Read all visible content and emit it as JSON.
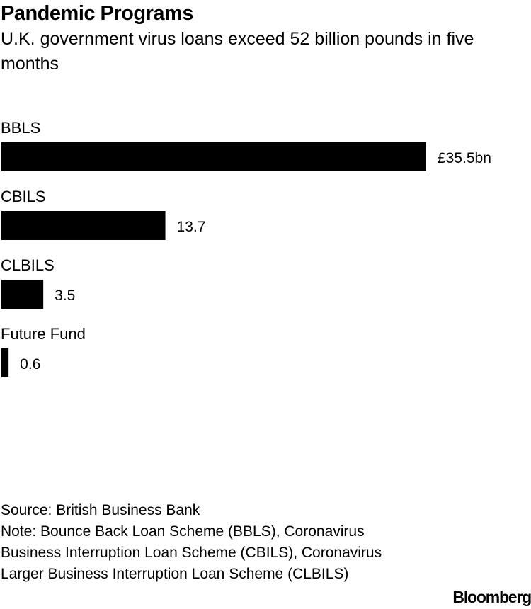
{
  "title": "Pandemic Programs",
  "subtitle": "U.K. government virus loans exceed 52 billion pounds in five months",
  "chart_data": {
    "type": "bar",
    "orientation": "horizontal",
    "title": "",
    "categories": [
      "BBLS",
      "CBILS",
      "CLBILS",
      "Future Fund"
    ],
    "values": [
      35.5,
      13.7,
      3.5,
      0.6
    ],
    "value_labels": [
      "£35.5bn",
      "13.7",
      "3.5",
      "0.6"
    ],
    "xlabel": "",
    "ylabel": "",
    "unit": "£bn",
    "xlim": [
      0,
      35.5
    ],
    "grid": false,
    "bar_color": "#000000"
  },
  "footer": {
    "source": "Source: British Business Bank",
    "note": "Note: Bounce Back Loan Scheme (BBLS), Coronavirus Business Interruption Loan Scheme (CBILS), Coronavirus Larger Business Interruption Loan Scheme (CLBILS)",
    "logo_text": "Bloomberg"
  }
}
